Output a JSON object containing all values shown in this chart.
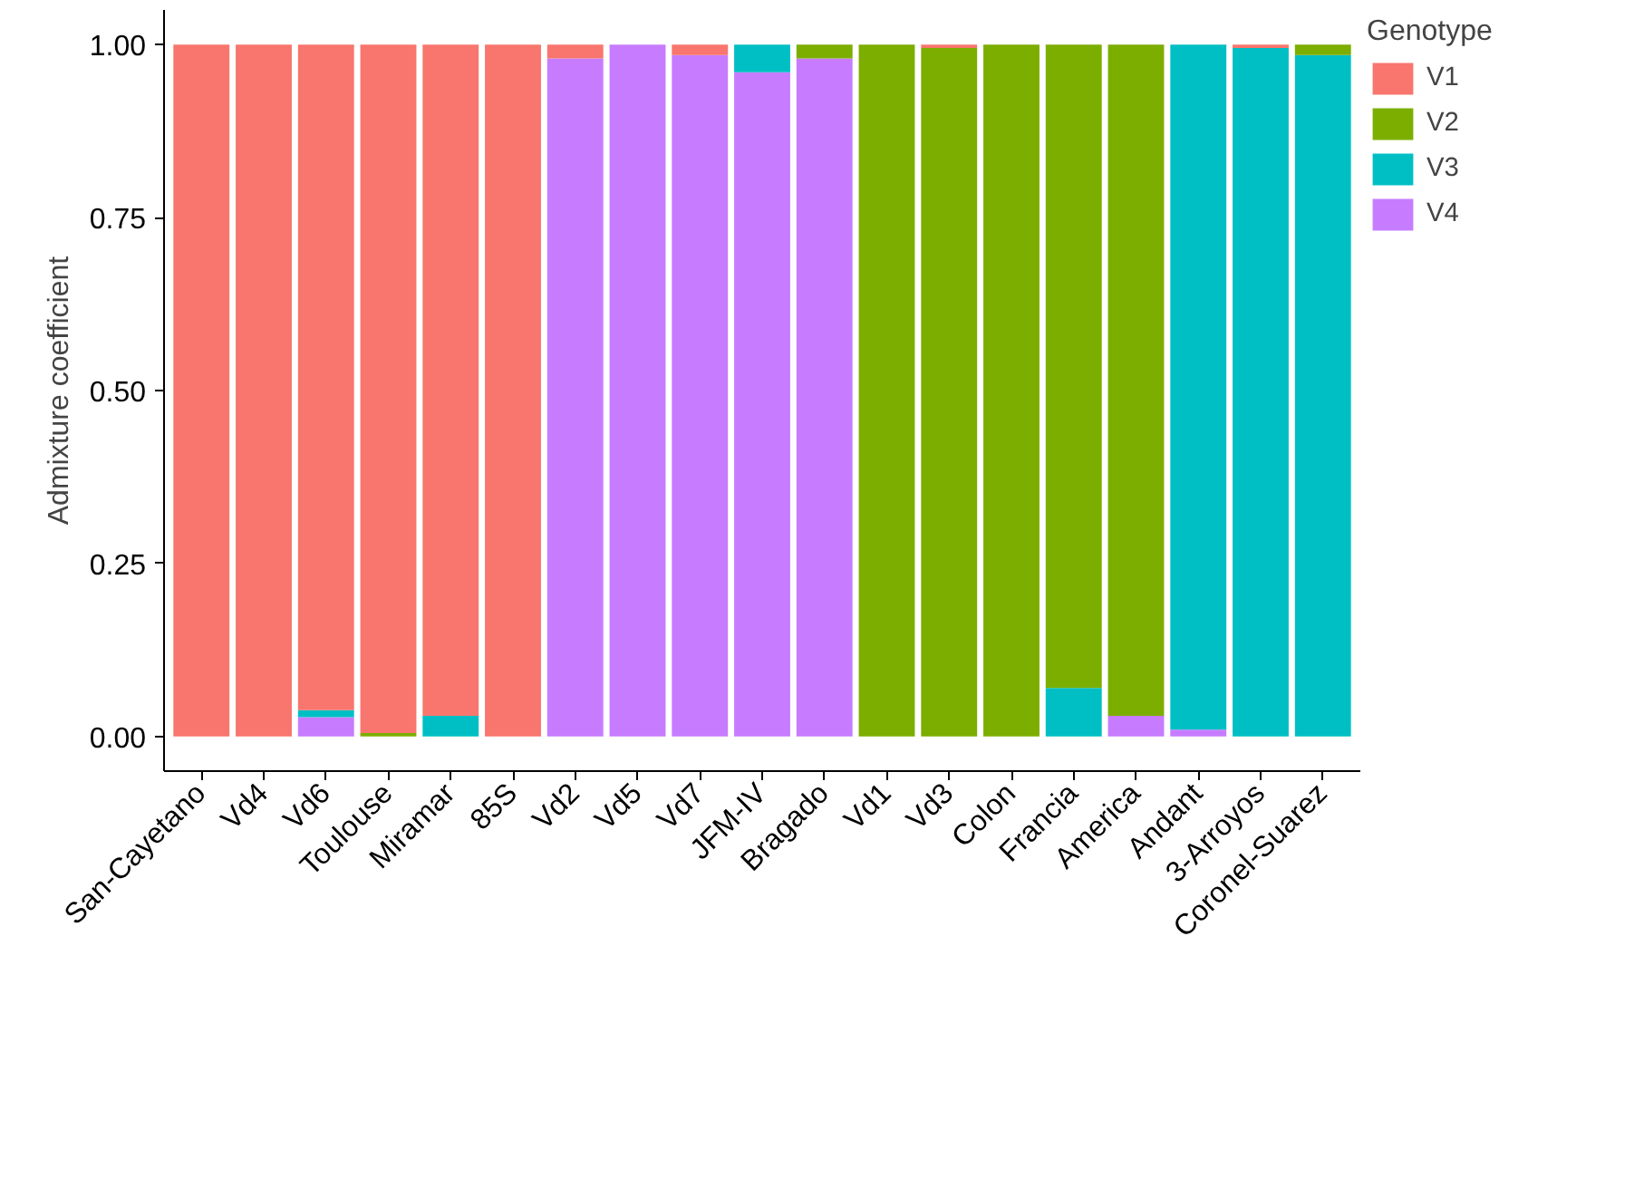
{
  "chart_data": {
    "type": "bar",
    "stacked": true,
    "ylabel": "Admixture coefficient",
    "legend_title": "Genotype",
    "legend": "right",
    "categories": [
      "San-Cayetano",
      "Vd4",
      "Vd6",
      "Toulouse",
      "Miramar",
      "85S",
      "Vd2",
      "Vd5",
      "Vd7",
      "JFM-IV",
      "Bragado",
      "Vd1",
      "Vd3",
      "Colon",
      "Francia",
      "America",
      "Andant",
      "3-Arroyos",
      "Coronel-Suarez"
    ],
    "series": [
      {
        "name": "V4",
        "color": "#c77cff",
        "values": [
          0,
          0,
          0.028,
          0,
          0,
          0,
          0.98,
          1,
          0.985,
          0.96,
          0.98,
          0,
          0,
          0,
          0,
          0.03,
          0.01,
          0,
          0
        ]
      },
      {
        "name": "V3",
        "color": "#00bfc4",
        "values": [
          0,
          0,
          0.01,
          0,
          0.03,
          0,
          0,
          0,
          0,
          0.04,
          0,
          0,
          0,
          0,
          0.07,
          0,
          0.99,
          0.995,
          0.985
        ]
      },
      {
        "name": "V2",
        "color": "#7cae00",
        "values": [
          0,
          0,
          0,
          0.005,
          0,
          0,
          0,
          0,
          0,
          0,
          0.02,
          1,
          0.995,
          1,
          0.93,
          0.97,
          0,
          0,
          0.015
        ]
      },
      {
        "name": "V1",
        "color": "#f8766d",
        "values": [
          1,
          1,
          0.962,
          0.995,
          0.97,
          1,
          0.02,
          0,
          0.015,
          0,
          0,
          0,
          0.005,
          0,
          0,
          0,
          0,
          0.005,
          0
        ]
      }
    ],
    "ylim": [
      -0.05,
      1.05
    ],
    "yticks": [
      {
        "value": 0,
        "label": "0.00"
      },
      {
        "value": 0.25,
        "label": "0.25"
      },
      {
        "value": 0.5,
        "label": "0.50"
      },
      {
        "value": 0.75,
        "label": "0.75"
      },
      {
        "value": 1,
        "label": "1.00"
      }
    ],
    "grid": false
  }
}
